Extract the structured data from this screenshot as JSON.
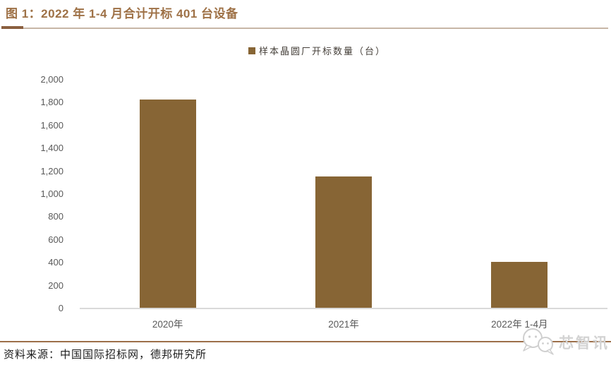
{
  "figure": {
    "title": "图 1：2022 年 1-4 月合计开标 401 台设备",
    "source": "资料来源：中国国际招标网，德邦研究所",
    "watermark": "芯智讯"
  },
  "chart_data": {
    "type": "bar",
    "legend": [
      "样本晶圆厂开标数量（台）"
    ],
    "legend_position": "top-center",
    "categories": [
      "2020年",
      "2021年",
      "2022年 1-4月"
    ],
    "values": [
      1820,
      1150,
      401
    ],
    "ylim": [
      0,
      2000
    ],
    "ytick_interval": 200,
    "ytick_labels": [
      "0",
      "200",
      "400",
      "600",
      "800",
      "1,000",
      "1,200",
      "1,400",
      "1,600",
      "1,800",
      "2,000"
    ],
    "grid": false,
    "xlabel": "",
    "ylabel": "",
    "bar_color": "#876535"
  },
  "colors": {
    "title": "#9e7146",
    "accent_rule": "#8a5f3f",
    "thin_rule": "#c7b6a6",
    "footer_rule": "#9c6f49",
    "bar": "#876535",
    "axis_text": "#595959",
    "legend_text": "#46403a",
    "axis_line": "#d9d9d9",
    "source_text": "#1c1c1c",
    "watermark": "#d3d3d3"
  }
}
